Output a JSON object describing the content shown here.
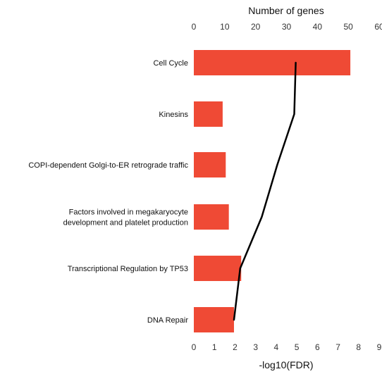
{
  "chart_data": {
    "type": "bar",
    "categories": [
      [
        "Cell Cycle"
      ],
      [
        "Kinesins"
      ],
      [
        "COPI-dependent Golgi-to-ER retrograde traffic"
      ],
      [
        "Factors involved in megakaryocyte",
        "development and platelet production"
      ],
      [
        "Transcriptional Regulation by TP53"
      ],
      [
        "DNA Repair"
      ]
    ],
    "bars": {
      "values": [
        7.6,
        1.4,
        1.55,
        1.7,
        2.3,
        1.95
      ],
      "color": "#ef4a35",
      "axis": "bottom"
    },
    "line": {
      "values": [
        33,
        32.5,
        27,
        22,
        15,
        13
      ],
      "color": "#000000",
      "axis": "top"
    },
    "x_bottom": {
      "label": "-log10(FDR)",
      "ticks": [
        0,
        1,
        2,
        3,
        4,
        5,
        6,
        7,
        8,
        9
      ],
      "lim": [
        0,
        9
      ]
    },
    "x_top": {
      "label": "Number of genes",
      "ticks": [
        0,
        10,
        20,
        30,
        40,
        50,
        60
      ],
      "lim": [
        0,
        60
      ]
    },
    "grid": false,
    "legend": "none"
  }
}
